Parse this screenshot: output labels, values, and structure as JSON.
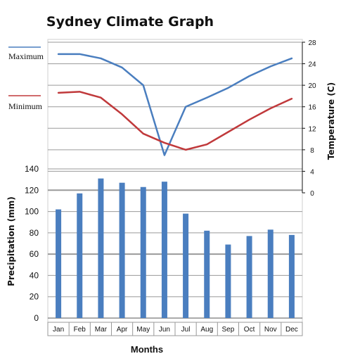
{
  "chart_data": {
    "type": "bar-line-combo",
    "title": "Sydney Climate Graph",
    "xlabel": "Months",
    "categories": [
      "Jan",
      "Feb",
      "Mar",
      "Apr",
      "May",
      "Jun",
      "Jul",
      "Aug",
      "Sep",
      "Oct",
      "Nov",
      "Dec"
    ],
    "precipitation": {
      "ylabel": "Precipitation (mm)",
      "ylim": [
        0,
        140
      ],
      "ticks": [
        "0",
        "20",
        "40",
        "60",
        "80",
        "100",
        "120",
        "140"
      ],
      "color": "#4a7ebf",
      "values": [
        102,
        117,
        131,
        127,
        123,
        128,
        98,
        82,
        69,
        77,
        83,
        78
      ]
    },
    "temperature": {
      "ylabel": "Temperature (C)",
      "ylim": [
        0,
        28
      ],
      "ticks": [
        "0",
        "4",
        "8",
        "12",
        "16",
        "20",
        "24",
        "28"
      ],
      "series": [
        {
          "name": "Maximum",
          "color": "#4a7ebf",
          "values": [
            25.8,
            25.8,
            25.0,
            23.3,
            20.0,
            7.0,
            16.0,
            17.7,
            19.5,
            21.7,
            23.5,
            25.0
          ]
        },
        {
          "name": "Minimum",
          "color": "#c0393b",
          "values": [
            18.6,
            18.8,
            17.7,
            14.6,
            11.0,
            9.3,
            8.0,
            9.0,
            11.3,
            13.6,
            15.7,
            17.5
          ]
        }
      ]
    },
    "grid": true,
    "legend": "left"
  }
}
